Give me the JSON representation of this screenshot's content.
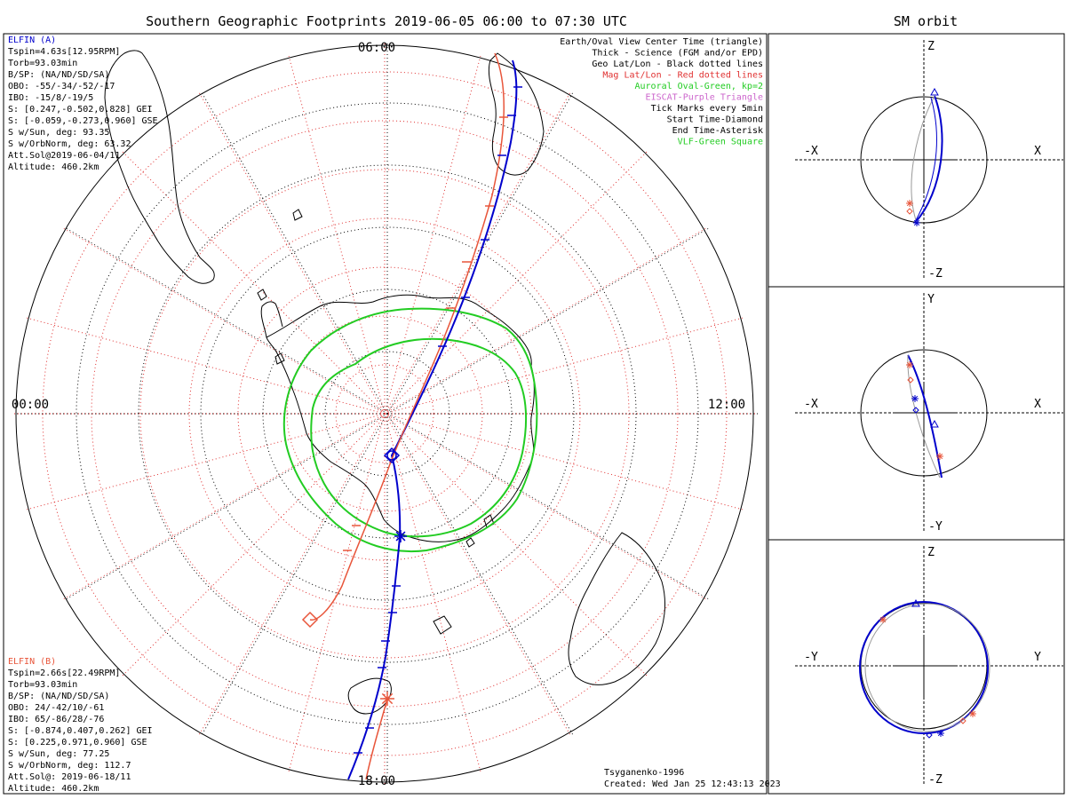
{
  "colors": {
    "a": "#0000cc",
    "b": "#e8553a",
    "oval": "#22cc22",
    "mag": "#e03030",
    "vlf": "#22cc22",
    "eiscat": "#cc66cc",
    "gray": "#999999"
  },
  "header": {
    "main_title": "Southern Geographic Footprints 2019-06-05 06:00 to 07:30 UTC",
    "sm_title": "SM orbit"
  },
  "map": {
    "time_labels": {
      "top": "06:00",
      "left": "00:00",
      "right": "12:00",
      "bottom": "18:00"
    }
  },
  "info_a": {
    "title": "ELFIN (A)",
    "lines": [
      "Tspin=4.63s[12.95RPM]",
      "Torb=93.03min",
      "B/SP: (NA/ND/SD/SA)",
      "OBO: -55/-34/-52/-17",
      "IBO: -15/8/-19/5",
      "S: [0.247,-0.502,0.828] GEI",
      "S: [-0.059,-0.273,0.960] GSE",
      "S w/Sun, deg: 93.35",
      "S w/OrbNorm, deg: 63.32",
      "Att.Sol@2019-06-04/11",
      "Altitude: 460.2km"
    ]
  },
  "info_b": {
    "title": "ELFIN (B)",
    "lines": [
      "Tspin=2.66s[22.49RPM]",
      "Torb=93.03min",
      "B/SP: (NA/ND/SD/SA)",
      "OBO: 24/-42/10/-61",
      "IBO: 65/-86/28/-76",
      "S: [-0.874,0.407,0.262] GEI",
      "S: [0.225,0.971,0.960] GSE",
      "S w/Sun, deg: 77.25",
      "S w/OrbNorm, deg: 112.7",
      "Att.Sol@: 2019-06-18/11",
      "Altitude: 460.2km"
    ]
  },
  "legend": [
    {
      "text": "Earth/Oval View Center Time (triangle)",
      "color": "#000000"
    },
    {
      "text": "Thick - Science (FGM and/or EPD)",
      "color": "#000000"
    },
    {
      "text": "Geo Lat/Lon - Black dotted lines",
      "color": "#000000"
    },
    {
      "text": "Mag Lat/Lon - Red dotted lines",
      "color": "#e03030"
    },
    {
      "text": "Auroral Oval-Green, kp=2",
      "color": "#22cc22"
    },
    {
      "text": "EISCAT-Purple Triangle",
      "color": "#cc66cc"
    },
    {
      "text": "Tick Marks every 5min",
      "color": "#000000"
    },
    {
      "text": "Start Time-Diamond",
      "color": "#000000"
    },
    {
      "text": "End Time-Asterisk",
      "color": "#000000"
    },
    {
      "text": "VLF-Green Square",
      "color": "#22cc22"
    }
  ],
  "footer": {
    "model": "Tsyganenko-1996",
    "created": "Created: Wed Jan 25 12:43:13 2023"
  },
  "sm_panels": [
    {
      "top": "Z",
      "bottom": "-Z",
      "left": "-X",
      "right": "X"
    },
    {
      "top": "Y",
      "bottom": "-Y",
      "left": "-X",
      "right": "X"
    },
    {
      "top": "Z",
      "bottom": "-Z",
      "left": "-Y",
      "right": "Y"
    }
  ],
  "chart_data": {
    "type": "polar map",
    "title": "Southern Geographic Footprints 2019-06-05 06:00 to 07:30 UTC",
    "series": [
      {
        "name": "ELFIN (A)",
        "color": "#0000cc"
      },
      {
        "name": "ELFIN (B)",
        "color": "#e8553a"
      }
    ],
    "auroral_oval_kp": 2
  }
}
